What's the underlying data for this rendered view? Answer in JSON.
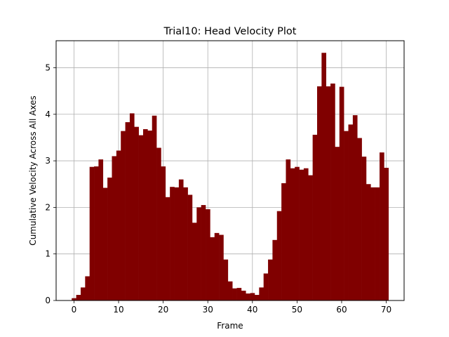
{
  "chart_data": {
    "type": "bar",
    "title": "Trial10: Head Velocity Plot",
    "xlabel": "Frame",
    "ylabel": "Cumulative Velocity Across All Axes",
    "xlim": [
      -4,
      74
    ],
    "ylim": [
      0,
      5.58
    ],
    "xticks": [
      0,
      10,
      20,
      30,
      40,
      50,
      60,
      70
    ],
    "yticks": [
      0,
      1,
      2,
      3,
      4,
      5
    ],
    "grid": true,
    "bar_color": "#800000",
    "x": [
      0,
      1,
      2,
      3,
      4,
      5,
      6,
      7,
      8,
      9,
      10,
      11,
      12,
      13,
      14,
      15,
      16,
      17,
      18,
      19,
      20,
      21,
      22,
      23,
      24,
      25,
      26,
      27,
      28,
      29,
      30,
      31,
      32,
      33,
      34,
      35,
      36,
      37,
      38,
      39,
      40,
      41,
      42,
      43,
      44,
      45,
      46,
      47,
      48,
      49,
      50,
      51,
      52,
      53,
      54,
      55,
      56,
      57,
      58,
      59,
      60,
      61,
      62,
      63,
      64,
      65,
      66,
      67,
      68,
      69,
      70
    ],
    "values": [
      0.05,
      0.12,
      0.28,
      0.52,
      2.87,
      2.88,
      3.03,
      2.42,
      2.64,
      3.1,
      3.22,
      3.64,
      3.83,
      4.02,
      3.73,
      3.55,
      3.68,
      3.65,
      3.97,
      3.28,
      2.88,
      2.22,
      2.44,
      2.43,
      2.6,
      2.43,
      2.27,
      1.67,
      2.0,
      2.05,
      1.96,
      1.36,
      1.45,
      1.41,
      0.88,
      0.41,
      0.26,
      0.27,
      0.21,
      0.15,
      0.16,
      0.12,
      0.28,
      0.58,
      0.88,
      1.3,
      1.92,
      2.52,
      3.03,
      2.84,
      2.87,
      2.81,
      2.84,
      2.69,
      3.56,
      4.6,
      5.32,
      4.6,
      4.66,
      3.3,
      4.59,
      3.64,
      3.78,
      3.98,
      3.49,
      3.09,
      2.5,
      2.43,
      2.43,
      3.18,
      2.85
    ]
  }
}
